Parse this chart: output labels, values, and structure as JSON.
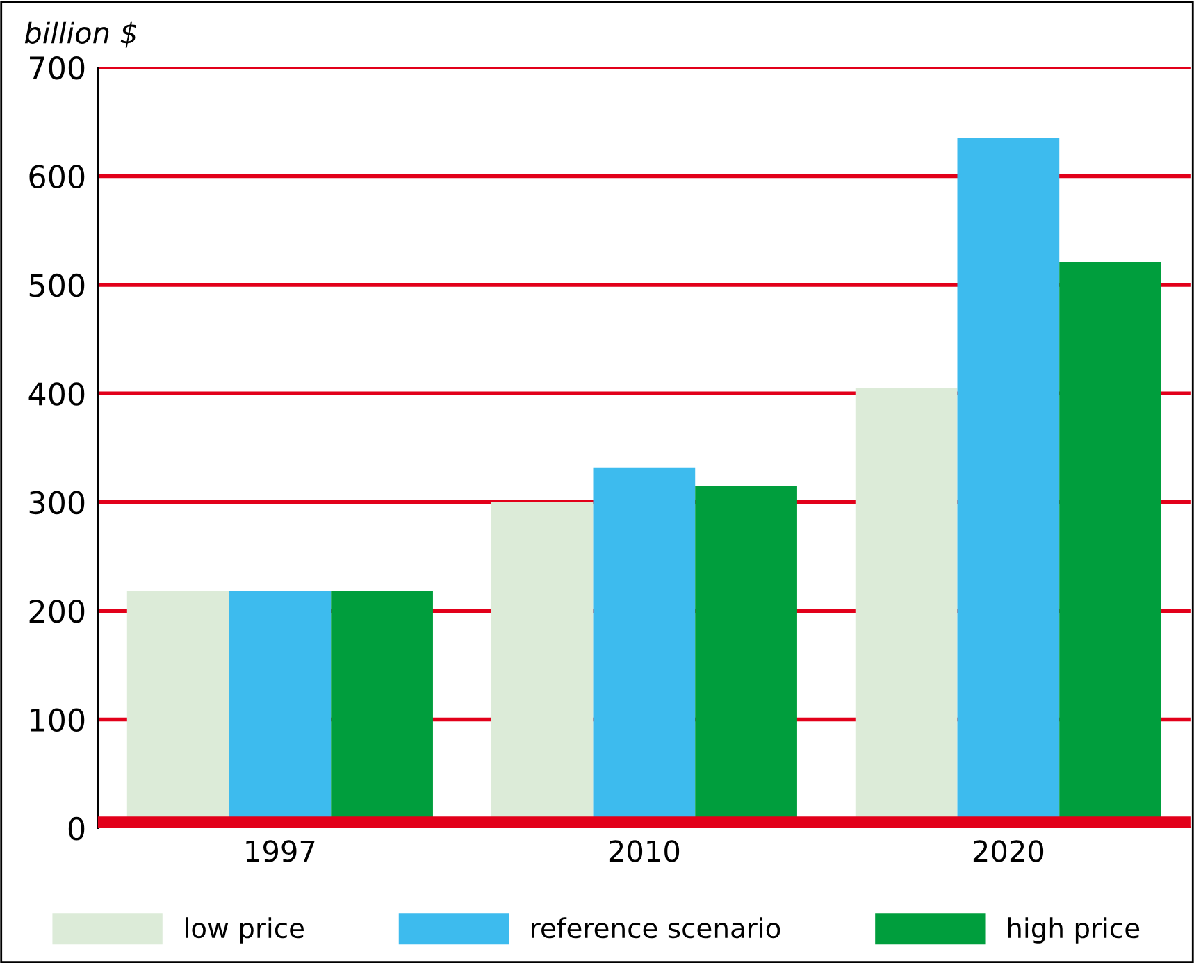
{
  "chart_data": {
    "type": "bar",
    "ylabel": "billion $",
    "categories": [
      "1997",
      "2010",
      "2020"
    ],
    "series": [
      {
        "name": "low price",
        "color": "#dcebd8",
        "values": [
          218,
          300,
          405
        ]
      },
      {
        "name": "reference scenario",
        "color": "#3dbbee",
        "values": [
          218,
          332,
          635
        ]
      },
      {
        "name": "high price",
        "color": "#009e3d",
        "values": [
          218,
          315,
          521
        ]
      }
    ],
    "ylim": [
      0,
      700
    ],
    "yticks": [
      0,
      100,
      200,
      300,
      400,
      500,
      600,
      700
    ],
    "grid": "y",
    "legend": "bottom"
  }
}
